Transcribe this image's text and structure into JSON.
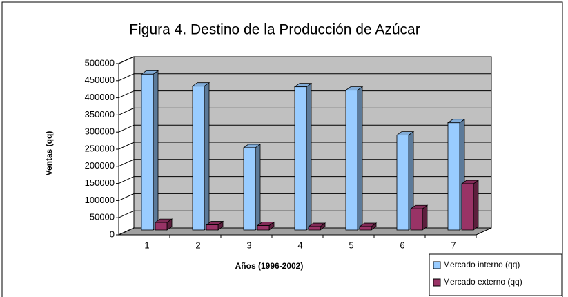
{
  "chart_data": {
    "type": "bar3d",
    "title": "Figura 4. Destino de la Producción de Azúcar",
    "x_label": "Años (1996-2002)",
    "y_label": "Ventas (qq)",
    "categories": [
      "1",
      "2",
      "3",
      "4",
      "5",
      "6",
      "7"
    ],
    "series": [
      {
        "name": "Mercado interno (qq)",
        "color": "#99ccff",
        "values": [
          455000,
          420000,
          240000,
          418000,
          408000,
          277000,
          313000
        ]
      },
      {
        "name": "Mercado externo (qq)",
        "color": "#993366",
        "values": [
          22000,
          15000,
          13000,
          10000,
          10000,
          62000,
          135000
        ]
      }
    ],
    "ylim": [
      0,
      500000
    ],
    "yticks": [
      0,
      50000,
      100000,
      150000,
      200000,
      250000,
      300000,
      350000,
      400000,
      450000,
      500000
    ],
    "grid": true,
    "legend": "bottom-right"
  }
}
